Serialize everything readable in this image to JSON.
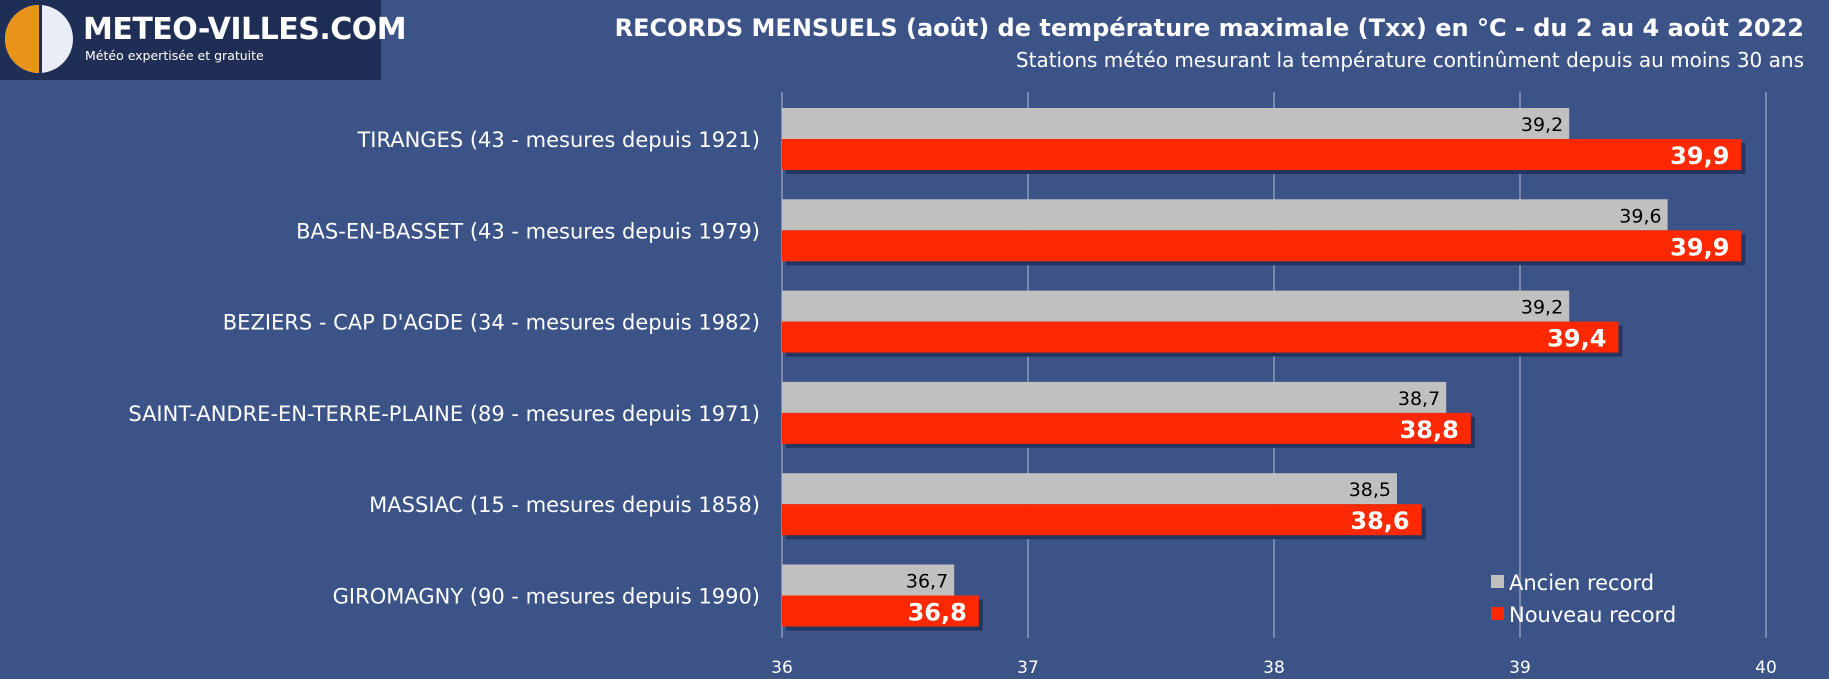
{
  "logo": {
    "title": "METEO-VILLES.COM",
    "subtitle": "Météo expertisée et gratuite"
  },
  "colors": {
    "background": "#3c5387",
    "old_record": "#c0c0c0",
    "new_record": "#ff2800",
    "grid": "#8c9ab8"
  },
  "chart_data": {
    "type": "bar",
    "orientation": "horizontal",
    "title": "RECORDS MENSUELS (août) de température maximale (Txx) en °C - du 2 au 4 août 2022",
    "subtitle": "Stations météo mesurant la température continûment depuis au moins 30 ans",
    "categories": [
      "TIRANGES (43 - mesures depuis 1921)",
      "BAS-EN-BASSET (43 - mesures depuis 1979)",
      "BEZIERS - CAP D'AGDE (34 - mesures depuis 1982)",
      "SAINT-ANDRE-EN-TERRE-PLAINE (89 - mesures depuis 1971)",
      "MASSIAC (15 - mesures depuis 1858)",
      "GIROMAGNY (90 - mesures depuis 1990)"
    ],
    "series": [
      {
        "name": "Ancien record",
        "values": [
          39.2,
          39.6,
          39.2,
          38.7,
          38.5,
          36.7
        ],
        "labels": [
          "39,2",
          "39,6",
          "39,2",
          "38,7",
          "38,5",
          "36,7"
        ]
      },
      {
        "name": "Nouveau record",
        "values": [
          39.9,
          39.9,
          39.4,
          38.8,
          38.6,
          36.8
        ],
        "labels": [
          "39,9",
          "39,9",
          "39,4",
          "38,8",
          "38,6",
          "36,8"
        ]
      }
    ],
    "xlim": [
      36,
      40
    ],
    "ticks": [
      36,
      37,
      38,
      39,
      40
    ],
    "tick_labels": [
      "36",
      "37",
      "38",
      "39",
      "40"
    ],
    "grid": true,
    "legend": "bottom-right"
  }
}
